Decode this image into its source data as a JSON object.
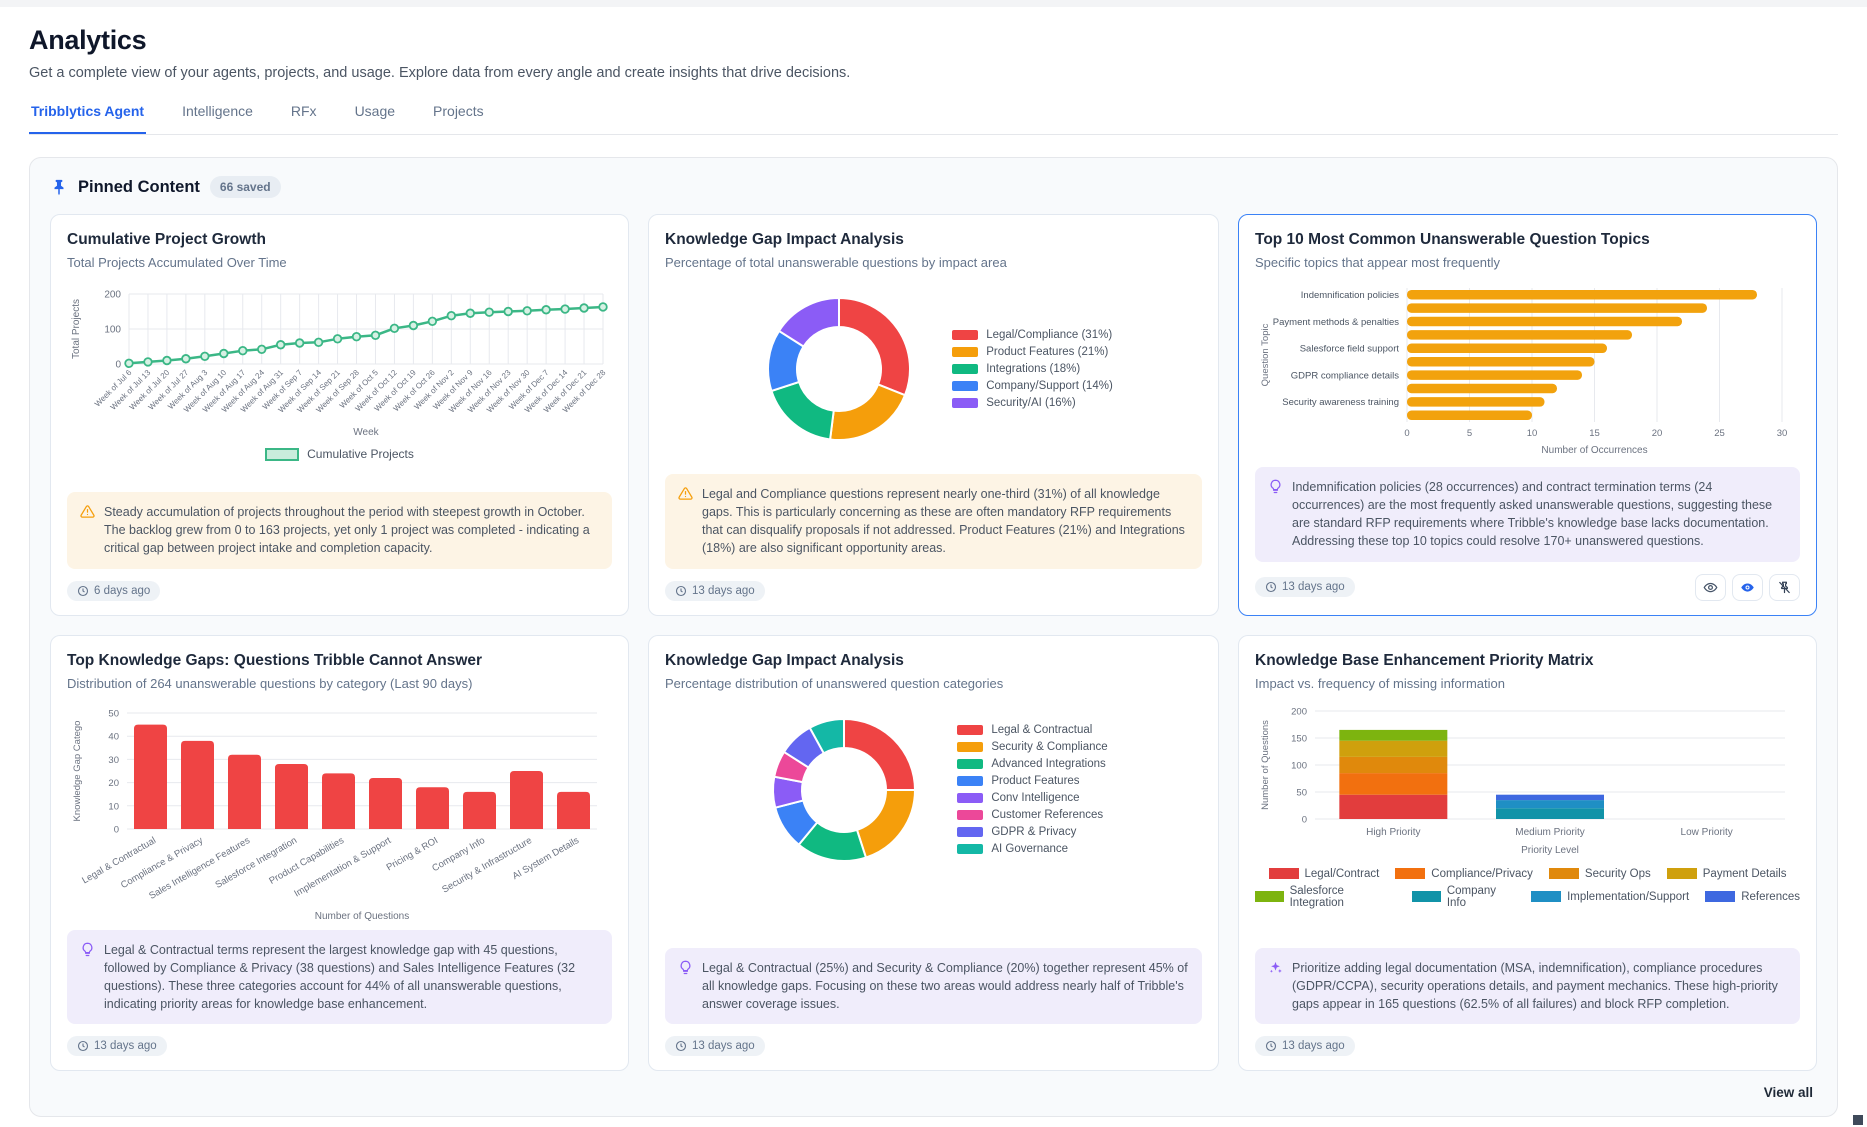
{
  "page": {
    "title": "Analytics",
    "subtitle": "Get a complete view of your agents, projects, and usage. Explore data from every angle and create insights that drive decisions.",
    "tabs": [
      {
        "label": "Tribblytics Agent",
        "active": true
      },
      {
        "label": "Intelligence",
        "active": false
      },
      {
        "label": "RFx",
        "active": false
      },
      {
        "label": "Usage",
        "active": false
      },
      {
        "label": "Projects",
        "active": false
      }
    ],
    "pinned": {
      "title": "Pinned Content",
      "badge": "66 saved",
      "view_all": "View all"
    }
  },
  "colors": {
    "accent": "#2563eb",
    "warning": "#f59e0b",
    "insight_purple": "#8b5cf6"
  },
  "cards": [
    {
      "title": "Cumulative Project Growth",
      "subtitle": "Total Projects Accumulated Over Time",
      "chart_index": 0,
      "insight": {
        "type": "warning",
        "text": "Steady accumulation of projects throughout the period with steepest growth in October. The backlog grew from 0 to 163 projects, yet only 1 project was completed - indicating a critical gap between project intake and completion capacity."
      },
      "timestamp": "6 days ago"
    },
    {
      "title": "Knowledge Gap Impact Analysis",
      "subtitle": "Percentage of total unanswerable questions by impact area",
      "chart_index": 1,
      "insight": {
        "type": "warning",
        "text": "Legal and Compliance questions represent nearly one-third (31%) of all knowledge gaps. This is particularly concerning as these are often mandatory RFP requirements that can disqualify proposals if not addressed. Product Features (21%) and Integrations (18%) are also significant opportunity areas."
      },
      "timestamp": "13 days ago"
    },
    {
      "title": "Top 10 Most Common Unanswerable Question Topics",
      "subtitle": "Specific topics that appear most frequently",
      "chart_index": 2,
      "highlighted": true,
      "insight": {
        "type": "bulb",
        "text": "Indemnification policies (28 occurrences) and contract termination terms (24 occurrences) are the most frequently asked unanswerable questions, suggesting these are standard RFP requirements where Tribble's knowledge base lacks documentation. Addressing these top 10 topics could resolve 170+ unanswered questions."
      },
      "timestamp": "13 days ago",
      "actions": [
        {
          "icon": "eye-icon",
          "name": "view-button"
        },
        {
          "icon": "eye-filled-icon",
          "name": "view-insight-button"
        },
        {
          "icon": "unpin-icon",
          "name": "unpin-button"
        }
      ]
    },
    {
      "title": "Top Knowledge Gaps: Questions Tribble Cannot Answer",
      "subtitle": "Distribution of 264 unanswerable questions by category (Last 90 days)",
      "chart_index": 3,
      "insight": {
        "type": "bulb",
        "text": "Legal & Contractual terms represent the largest knowledge gap with 45 questions, followed by Compliance & Privacy (38 questions) and Sales Intelligence Features (32 questions). These three categories account for 44% of all unanswerable questions, indicating priority areas for knowledge base enhancement."
      },
      "timestamp": "13 days ago"
    },
    {
      "title": "Knowledge Gap Impact Analysis",
      "subtitle": "Percentage distribution of unanswered question categories",
      "chart_index": 4,
      "insight": {
        "type": "bulb",
        "text": "Legal & Contractual (25%) and Security & Compliance (20%) together represent 45% of all knowledge gaps. Focusing on these two areas would address nearly half of Tribble's answer coverage issues."
      },
      "timestamp": "13 days ago"
    },
    {
      "title": "Knowledge Base Enhancement Priority Matrix",
      "subtitle": "Impact vs. frequency of missing information",
      "chart_index": 5,
      "insight": {
        "type": "sparkle",
        "text": "Prioritize adding legal documentation (MSA, indemnification), compliance procedures (GDPR/CCPA), security operations details, and payment mechanics. These high-priority gaps appear in 165 questions (62.5% of all failures) and block RFP completion."
      },
      "timestamp": "13 days ago"
    }
  ],
  "chart_data": [
    {
      "type": "line",
      "x": [
        "Week of Jul 6",
        "Week of Jul 13",
        "Week of Jul 20",
        "Week of Jul 27",
        "Week of Aug 3",
        "Week of Aug 10",
        "Week of Aug 17",
        "Week of Aug 24",
        "Week of Aug 31",
        "Week of Sep 7",
        "Week of Sep 14",
        "Week of Sep 21",
        "Week of Sep 28",
        "Week of Oct 5",
        "Week of Oct 12",
        "Week of Oct 19",
        "Week of Oct 26",
        "Week of Nov 2",
        "Week of Nov 9",
        "Week of Nov 16",
        "Week of Nov 23",
        "Week of Nov 30",
        "Week of Dec 7",
        "Week of Dec 14",
        "Week of Dec 21",
        "Week of Dec 28"
      ],
      "series": [
        {
          "name": "Cumulative Projects",
          "color": "#3bb786",
          "values": [
            2,
            6,
            10,
            15,
            22,
            30,
            38,
            42,
            55,
            60,
            62,
            72,
            78,
            82,
            102,
            110,
            122,
            138,
            145,
            148,
            150,
            152,
            155,
            157,
            160,
            163
          ]
        }
      ],
      "xlabel": "Week",
      "ylabel": "Total Projects",
      "ylim": [
        0,
        200
      ],
      "yticks": [
        0,
        100,
        200
      ],
      "grid": true,
      "legend_position": "bottom"
    },
    {
      "type": "pie",
      "donut": true,
      "legend_position": "right",
      "labels": [
        "Legal/Compliance (31%)",
        "Product Features (21%)",
        "Integrations (18%)",
        "Company/Support (14%)",
        "Security/AI (16%)"
      ],
      "values": [
        31,
        21,
        18,
        14,
        16
      ],
      "colors": [
        "#ef4444",
        "#f59e0b",
        "#10b981",
        "#3b82f6",
        "#8b5cf6"
      ]
    },
    {
      "type": "bar",
      "orientation": "horizontal",
      "color": "#f2a20d",
      "categories": [
        "Indemnification policies",
        "",
        "Payment methods & penalties",
        "",
        "Salesforce field support",
        "",
        "GDPR compliance details",
        "",
        "Security awareness training",
        ""
      ],
      "values": [
        28,
        24,
        22,
        18,
        16,
        15,
        14,
        12,
        11,
        10
      ],
      "xlabel": "Number of Occurrences",
      "ylabel": "Question Topic",
      "xlim": [
        0,
        30
      ],
      "xticks": [
        0,
        5,
        10,
        15,
        20,
        25,
        30
      ],
      "grid": true
    },
    {
      "type": "bar",
      "orientation": "vertical",
      "color": "#ef4444",
      "categories": [
        "Legal & Contractual",
        "Compliance & Privacy",
        "Sales Intelligence Features",
        "Salesforce Integration",
        "Product Capabilities",
        "Implementation & Support",
        "Pricing & ROI",
        "Company Info",
        "Security & Infrastructure",
        "AI System Details"
      ],
      "values": [
        45,
        38,
        32,
        28,
        24,
        22,
        18,
        16,
        25,
        16
      ],
      "xlabel": "Number of Questions",
      "ylabel": "Knowledge Gap Catego",
      "ylim": [
        0,
        50
      ],
      "yticks": [
        0,
        10,
        20,
        30,
        40,
        50
      ],
      "grid": true
    },
    {
      "type": "pie",
      "donut": true,
      "legend_position": "right",
      "labels": [
        "Legal & Contractual",
        "Security & Compliance",
        "Advanced Integrations",
        "Product Features",
        "Conv Intelligence",
        "Customer References",
        "GDPR & Privacy",
        "AI Governance"
      ],
      "values": [
        25,
        20,
        16,
        10,
        7,
        6,
        8,
        8
      ],
      "colors": [
        "#ef4444",
        "#f59e0b",
        "#10b981",
        "#3b82f6",
        "#8b5cf6",
        "#ec4899",
        "#6366f1",
        "#14b8a6"
      ]
    },
    {
      "type": "bar",
      "stacked": true,
      "categories": [
        "High Priority",
        "Medium Priority",
        "Low Priority"
      ],
      "series": [
        {
          "name": "Legal/Contract",
          "color": "#e23d3d",
          "values": [
            45,
            0,
            0
          ]
        },
        {
          "name": "Compliance/Privacy",
          "color": "#f2700f",
          "values": [
            40,
            0,
            0
          ]
        },
        {
          "name": "Security Ops",
          "color": "#e0890c",
          "values": [
            30,
            0,
            0
          ]
        },
        {
          "name": "Payment Details",
          "color": "#cfa00d",
          "values": [
            30,
            0,
            0
          ]
        },
        {
          "name": "Salesforce Integration",
          "color": "#7db40f",
          "values": [
            20,
            0,
            0
          ]
        },
        {
          "name": "Company Info",
          "color": "#1193a8",
          "values": [
            0,
            20,
            0
          ]
        },
        {
          "name": "Implementation/Support",
          "color": "#1f8fc4",
          "values": [
            0,
            15,
            0
          ]
        },
        {
          "name": "References",
          "color": "#3e68e0",
          "values": [
            0,
            10,
            0
          ]
        }
      ],
      "xlabel": "Priority Level",
      "ylabel": "Number of Questions",
      "ylim": [
        0,
        200
      ],
      "yticks": [
        0,
        50,
        100,
        150,
        200
      ],
      "grid": true,
      "legend_position": "bottom"
    }
  ]
}
